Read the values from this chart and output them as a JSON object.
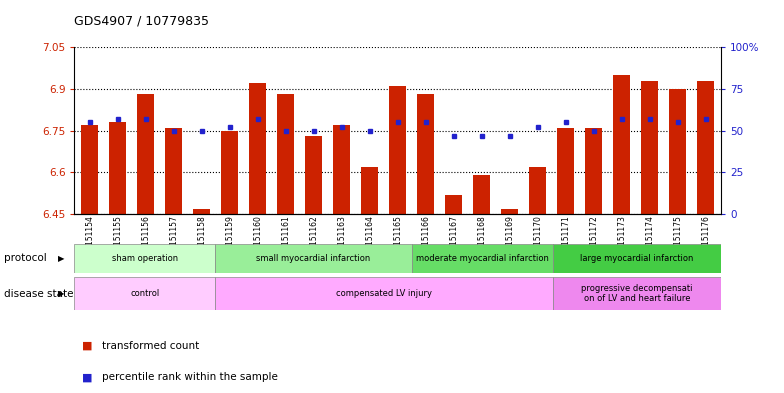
{
  "title": "GDS4907 / 10779835",
  "samples": [
    "GSM1151154",
    "GSM1151155",
    "GSM1151156",
    "GSM1151157",
    "GSM1151158",
    "GSM1151159",
    "GSM1151160",
    "GSM1151161",
    "GSM1151162",
    "GSM1151163",
    "GSM1151164",
    "GSM1151165",
    "GSM1151166",
    "GSM1151167",
    "GSM1151168",
    "GSM1151169",
    "GSM1151170",
    "GSM1151171",
    "GSM1151172",
    "GSM1151173",
    "GSM1151174",
    "GSM1151175",
    "GSM1151176"
  ],
  "bar_values": [
    6.77,
    6.78,
    6.88,
    6.76,
    6.47,
    6.75,
    6.92,
    6.88,
    6.73,
    6.77,
    6.62,
    6.91,
    6.88,
    6.52,
    6.59,
    6.47,
    6.62,
    6.76,
    6.76,
    6.95,
    6.93,
    6.9,
    6.93
  ],
  "percentile_values": [
    55,
    57,
    57,
    50,
    50,
    52,
    57,
    50,
    50,
    52,
    50,
    55,
    55,
    47,
    47,
    47,
    52,
    55,
    50,
    57,
    57,
    55,
    57
  ],
  "ylim_left": [
    6.45,
    7.05
  ],
  "ylim_right": [
    0,
    100
  ],
  "yticks_left": [
    6.45,
    6.6,
    6.75,
    6.9,
    7.05
  ],
  "yticks_right": [
    0,
    25,
    50,
    75,
    100
  ],
  "ytick_labels_left": [
    "6.45",
    "6.6",
    "6.75",
    "6.9",
    "7.05"
  ],
  "ytick_labels_right": [
    "0",
    "25",
    "50",
    "75",
    "100%"
  ],
  "bar_color": "#cc2200",
  "dot_color": "#2222cc",
  "protocol_groups": [
    {
      "label": "sham operation",
      "start": 0,
      "end": 4,
      "color": "#ccffcc"
    },
    {
      "label": "small myocardial infarction",
      "start": 5,
      "end": 11,
      "color": "#99ee99"
    },
    {
      "label": "moderate myocardial infarction",
      "start": 12,
      "end": 16,
      "color": "#66dd66"
    },
    {
      "label": "large myocardial infarction",
      "start": 17,
      "end": 22,
      "color": "#44cc44"
    }
  ],
  "disease_groups": [
    {
      "label": "control",
      "start": 0,
      "end": 4,
      "color": "#ffccff"
    },
    {
      "label": "compensated LV injury",
      "start": 5,
      "end": 16,
      "color": "#ffaaff"
    },
    {
      "label": "progressive decompensati\non of LV and heart failure",
      "start": 17,
      "end": 22,
      "color": "#ee88ee"
    }
  ],
  "legend_items": [
    {
      "label": "transformed count",
      "color": "#cc2200"
    },
    {
      "label": "percentile rank within the sample",
      "color": "#2222cc"
    }
  ]
}
